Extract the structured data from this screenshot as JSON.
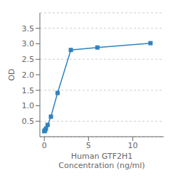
{
  "chart_data": {
    "type": "line",
    "x": [
      0,
      0.047,
      0.094,
      0.188,
      0.375,
      0.75,
      1.5,
      3,
      6,
      12
    ],
    "values": [
      0.178,
      0.188,
      0.21,
      0.264,
      0.38,
      0.648,
      1.412,
      2.8,
      2.88,
      3.02
    ],
    "marker": "square",
    "xlabel": "Human GTF2H1\nConcentration (ng/ml)",
    "ylabel": "OD",
    "xlim": [
      -0.5,
      13.5
    ],
    "ylim": [
      0.0,
      4.0
    ],
    "xticks": [
      0,
      5,
      10
    ],
    "yticks": [
      0.5,
      {
        "value": 1.0,
        "label": "1.0"
      },
      1.5,
      {
        "value": 2.0,
        "label": "2.0"
      },
      2.5,
      {
        "value": 3.0,
        "label": "3.0"
      },
      3.5
    ],
    "grid": true
  }
}
